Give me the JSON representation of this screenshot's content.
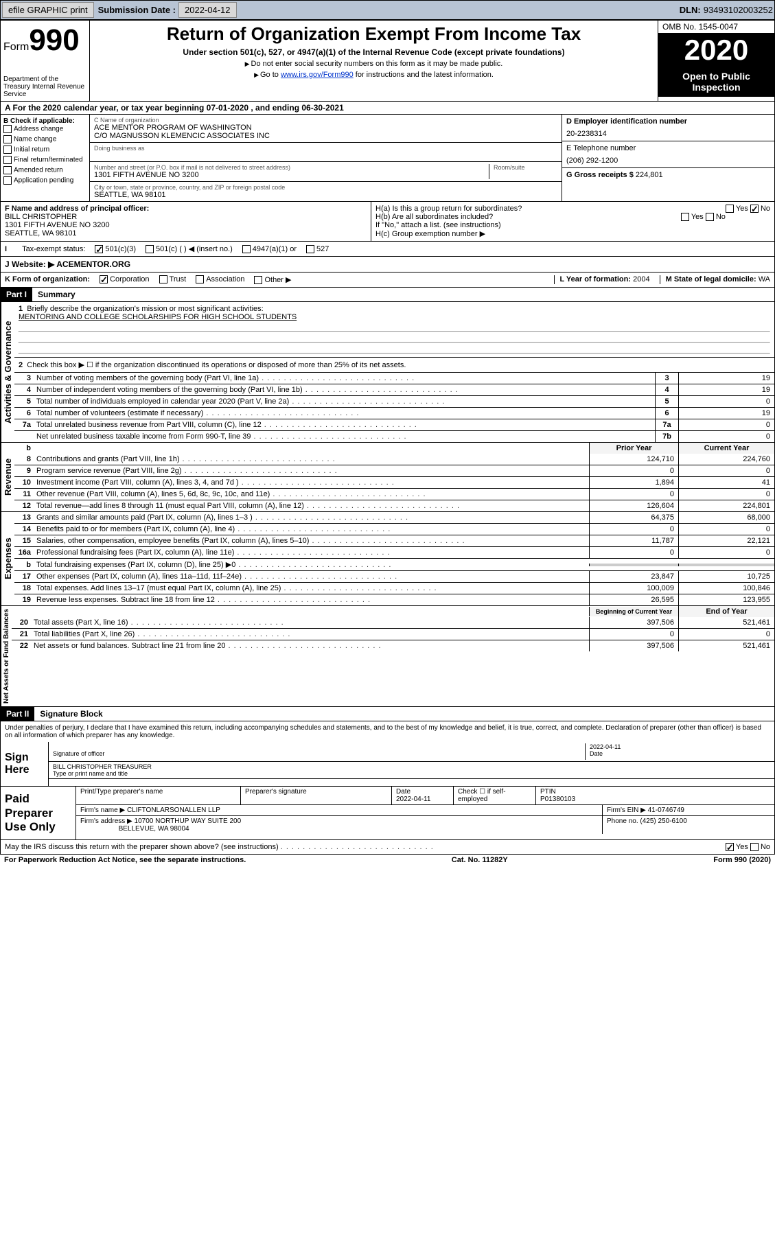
{
  "topbar": {
    "efile": "efile GRAPHIC print",
    "subdate_label": "Submission Date :",
    "subdate": "2022-04-12",
    "dln_label": "DLN:",
    "dln": "93493102003252"
  },
  "header": {
    "form_label": "Form",
    "form_num": "990",
    "dept": "Department of the Treasury\nInternal Revenue Service",
    "title": "Return of Organization Exempt From Income Tax",
    "subtitle": "Under section 501(c), 527, or 4947(a)(1) of the Internal Revenue Code (except private foundations)",
    "note1": "Do not enter social security numbers on this form as it may be made public.",
    "note2_pre": "Go to ",
    "note2_link": "www.irs.gov/Form990",
    "note2_post": " for instructions and the latest information.",
    "omb": "OMB No. 1545-0047",
    "year": "2020",
    "inspection": "Open to Public Inspection"
  },
  "period": {
    "text": "A For the 2020 calendar year, or tax year beginning 07-01-2020   , and ending 06-30-2021"
  },
  "colB": {
    "header": "B Check if applicable:",
    "items": [
      "Address change",
      "Name change",
      "Initial return",
      "Final return/terminated",
      "Amended return",
      "Application pending"
    ]
  },
  "colC": {
    "name_lbl": "C Name of organization",
    "name": "ACE MENTOR PROGRAM OF WASHINGTON",
    "co": "C/O MAGNUSSON KLEMENCIC ASSOCIATES INC",
    "dba_lbl": "Doing business as",
    "dba": "",
    "addr_lbl": "Number and street (or P.O. box if mail is not delivered to street address)",
    "room_lbl": "Room/suite",
    "addr": "1301 FIFTH AVENUE NO 3200",
    "city_lbl": "City or town, state or province, country, and ZIP or foreign postal code",
    "city": "SEATTLE, WA  98101"
  },
  "colD": {
    "ein_lbl": "D Employer identification number",
    "ein": "20-2238314",
    "phone_lbl": "E Telephone number",
    "phone": "(206) 292-1200",
    "gross_lbl": "G Gross receipts $",
    "gross": "224,801"
  },
  "rowF": {
    "lbl": "F  Name and address of principal officer:",
    "name": "BILL CHRISTOPHER",
    "addr1": "1301 FIFTH AVENUE NO 3200",
    "addr2": "SEATTLE, WA  98101",
    "ha": "H(a)  Is this a group return for subordinates?",
    "hb": "H(b)  Are all subordinates included?",
    "hb_note": "If \"No,\" attach a list. (see instructions)",
    "hc": "H(c)  Group exemption number ▶",
    "yes": "Yes",
    "no": "No"
  },
  "taxstatus": {
    "lbl": "Tax-exempt status:",
    "o1": "501(c)(3)",
    "o2": "501(c) (  ) ◀ (insert no.)",
    "o3": "4947(a)(1) or",
    "o4": "527"
  },
  "website": {
    "lbl": "J  Website: ▶",
    "val": "ACEMENTOR.ORG"
  },
  "korg": {
    "lbl": "K Form of organization:",
    "o1": "Corporation",
    "o2": "Trust",
    "o3": "Association",
    "o4": "Other ▶",
    "l_lbl": "L Year of formation:",
    "l_val": "2004",
    "m_lbl": "M State of legal domicile:",
    "m_val": "WA"
  },
  "part1": {
    "hdr": "Part I",
    "title": "Summary",
    "line1_lbl": "Briefly describe the organization's mission or most significant activities:",
    "line1_val": "MENTORING AND COLLEGE SCHOLARSHIPS FOR HIGH SCHOOL STUDENTS",
    "line2": "Check this box ▶ ☐  if the organization discontinued its operations or disposed of more than 25% of its net assets.",
    "vtab1": "Activities & Governance",
    "vtab2": "Revenue",
    "vtab3": "Expenses",
    "vtab4": "Net Assets or Fund Balances",
    "rows_a": [
      {
        "n": "3",
        "d": "Number of voting members of the governing body (Part VI, line 1a)",
        "b": "3",
        "v": "19"
      },
      {
        "n": "4",
        "d": "Number of independent voting members of the governing body (Part VI, line 1b)",
        "b": "4",
        "v": "19"
      },
      {
        "n": "5",
        "d": "Total number of individuals employed in calendar year 2020 (Part V, line 2a)",
        "b": "5",
        "v": "0"
      },
      {
        "n": "6",
        "d": "Total number of volunteers (estimate if necessary)",
        "b": "6",
        "v": "19"
      },
      {
        "n": "7a",
        "d": "Total unrelated business revenue from Part VIII, column (C), line 12",
        "b": "7a",
        "v": "0"
      },
      {
        "n": "",
        "d": "Net unrelated business taxable income from Form 990-T, line 39",
        "b": "7b",
        "v": "0"
      }
    ],
    "colhdr_prior": "Prior Year",
    "colhdr_curr": "Current Year",
    "rows_rev": [
      {
        "n": "8",
        "d": "Contributions and grants (Part VIII, line 1h)",
        "p": "124,710",
        "c": "224,760"
      },
      {
        "n": "9",
        "d": "Program service revenue (Part VIII, line 2g)",
        "p": "0",
        "c": "0"
      },
      {
        "n": "10",
        "d": "Investment income (Part VIII, column (A), lines 3, 4, and 7d )",
        "p": "1,894",
        "c": "41"
      },
      {
        "n": "11",
        "d": "Other revenue (Part VIII, column (A), lines 5, 6d, 8c, 9c, 10c, and 11e)",
        "p": "0",
        "c": "0"
      },
      {
        "n": "12",
        "d": "Total revenue—add lines 8 through 11 (must equal Part VIII, column (A), line 12)",
        "p": "126,604",
        "c": "224,801"
      }
    ],
    "rows_exp": [
      {
        "n": "13",
        "d": "Grants and similar amounts paid (Part IX, column (A), lines 1–3 )",
        "p": "64,375",
        "c": "68,000"
      },
      {
        "n": "14",
        "d": "Benefits paid to or for members (Part IX, column (A), line 4)",
        "p": "0",
        "c": "0"
      },
      {
        "n": "15",
        "d": "Salaries, other compensation, employee benefits (Part IX, column (A), lines 5–10)",
        "p": "11,787",
        "c": "22,121"
      },
      {
        "n": "16a",
        "d": "Professional fundraising fees (Part IX, column (A), line 11e)",
        "p": "0",
        "c": "0"
      },
      {
        "n": "b",
        "d": "Total fundraising expenses (Part IX, column (D), line 25) ▶0",
        "p": "",
        "c": "",
        "grey": true
      },
      {
        "n": "17",
        "d": "Other expenses (Part IX, column (A), lines 11a–11d, 11f–24e)",
        "p": "23,847",
        "c": "10,725"
      },
      {
        "n": "18",
        "d": "Total expenses. Add lines 13–17 (must equal Part IX, column (A), line 25)",
        "p": "100,009",
        "c": "100,846"
      },
      {
        "n": "19",
        "d": "Revenue less expenses. Subtract line 18 from line 12",
        "p": "26,595",
        "c": "123,955"
      }
    ],
    "colhdr_beg": "Beginning of Current Year",
    "colhdr_end": "End of Year",
    "rows_net": [
      {
        "n": "20",
        "d": "Total assets (Part X, line 16)",
        "p": "397,506",
        "c": "521,461"
      },
      {
        "n": "21",
        "d": "Total liabilities (Part X, line 26)",
        "p": "0",
        "c": "0"
      },
      {
        "n": "22",
        "d": "Net assets or fund balances. Subtract line 21 from line 20",
        "p": "397,506",
        "c": "521,461"
      }
    ]
  },
  "part2": {
    "hdr": "Part II",
    "title": "Signature Block",
    "decl": "Under penalties of perjury, I declare that I have examined this return, including accompanying schedules and statements, and to the best of my knowledge and belief, it is true, correct, and complete. Declaration of preparer (other than officer) is based on all information of which preparer has any knowledge.",
    "sign_here": "Sign Here",
    "sig_of_officer": "Signature of officer",
    "date_lbl": "Date",
    "date": "2022-04-11",
    "officer": "BILL CHRISTOPHER  TREASURER",
    "type_name": "Type or print name and title",
    "paid_lbl": "Paid Preparer Use Only",
    "prep_name_lbl": "Print/Type preparer's name",
    "prep_name": "",
    "prep_sig_lbl": "Preparer's signature",
    "prep_date_lbl": "Date",
    "prep_date": "2022-04-11",
    "check_self": "Check ☐ if self-employed",
    "ptin_lbl": "PTIN",
    "ptin": "P01380103",
    "firm_name_lbl": "Firm's name   ▶",
    "firm_name": "CLIFTONLARSONALLEN LLP",
    "firm_ein_lbl": "Firm's EIN ▶",
    "firm_ein": "41-0746749",
    "firm_addr_lbl": "Firm's address ▶",
    "firm_addr1": "10700 NORTHUP WAY SUITE 200",
    "firm_addr2": "BELLEVUE, WA  98004",
    "firm_phone_lbl": "Phone no.",
    "firm_phone": "(425) 250-6100",
    "discuss": "May the IRS discuss this return with the preparer shown above? (see instructions)",
    "yes": "Yes",
    "no": "No"
  },
  "footer": {
    "left": "For Paperwork Reduction Act Notice, see the separate instructions.",
    "mid": "Cat. No. 11282Y",
    "right": "Form 990 (2020)"
  }
}
